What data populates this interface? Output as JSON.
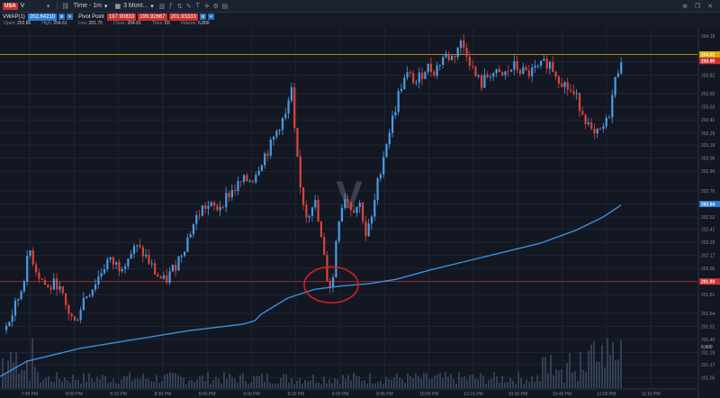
{
  "toolbar": {
    "symbol_badge": "USA",
    "symbol": "V",
    "interval_label": "Time - 1m",
    "range_label": "3 Mont..."
  },
  "studies": {
    "vwap_label": "VWAP(1)",
    "vwap_value": "202.64210",
    "pivot_label": "Pivot Point",
    "pivot_values": [
      "197.90833",
      "199.92667",
      "201.93333"
    ]
  },
  "ohlc": [
    {
      "label": "Open:",
      "value": "202.86"
    },
    {
      "label": "High:",
      "value": "204.61"
    },
    {
      "label": "Low:",
      "value": "201.75"
    },
    {
      "label": "Close:",
      "value": "204.61"
    },
    {
      "label": "Ticks:",
      "value": "65"
    },
    {
      "label": "Volume:",
      "value": "6,800"
    }
  ],
  "chart_data": {
    "type": "candlestick",
    "symbol": "V",
    "watermark": "V",
    "y_ticks": [
      "204.18",
      "204.01",
      "203.94",
      "203.82",
      "203.65",
      "203.53",
      "203.41",
      "203.29",
      "203.18",
      "203.06",
      "202.94",
      "202.76",
      "202.64",
      "202.52",
      "202.41",
      "202.29",
      "202.17",
      "202.05",
      "201.93",
      "201.81",
      "201.64",
      "201.52",
      "201.40",
      "201.28",
      "201.17",
      "201.05"
    ],
    "price_badges": [
      {
        "value": "204.01",
        "color": "#e0a800"
      },
      {
        "value": "203.95",
        "color": "#d03030"
      },
      {
        "value": "202.64",
        "color": "#2a7fd4"
      },
      {
        "value": "201.93",
        "color": "#d03030"
      }
    ],
    "x_ticks": [
      "7:45 PM",
      "8:00 PM",
      "8:15 PM",
      "8:30 PM",
      "8:45 PM",
      "9:00 PM",
      "9:15 PM",
      "9:30 PM",
      "9:45 PM",
      "10:00 PM",
      "10:15 PM",
      "10:30 PM",
      "10:45 PM",
      "11:00 PM",
      "11:15 PM"
    ],
    "volume_label": "6,800",
    "close_path": [
      [
        0,
        201.42
      ],
      [
        12,
        201.62
      ],
      [
        22,
        201.84
      ],
      [
        32,
        202.22
      ],
      [
        40,
        202.02
      ],
      [
        52,
        201.86
      ],
      [
        62,
        201.92
      ],
      [
        72,
        201.7
      ],
      [
        82,
        201.55
      ],
      [
        92,
        201.78
      ],
      [
        102,
        201.88
      ],
      [
        118,
        202.12
      ],
      [
        132,
        202.07
      ],
      [
        140,
        202.15
      ],
      [
        150,
        202.24
      ],
      [
        160,
        202.17
      ],
      [
        172,
        202.0
      ],
      [
        182,
        201.92
      ],
      [
        195,
        202.1
      ],
      [
        205,
        202.28
      ],
      [
        215,
        202.48
      ],
      [
        225,
        202.62
      ],
      [
        240,
        202.6
      ],
      [
        255,
        202.75
      ],
      [
        268,
        202.84
      ],
      [
        280,
        202.88
      ],
      [
        290,
        203.05
      ],
      [
        300,
        203.18
      ],
      [
        310,
        203.38
      ],
      [
        318,
        203.46
      ],
      [
        322,
        203.75
      ],
      [
        326,
        203.3
      ],
      [
        332,
        202.8
      ],
      [
        340,
        202.52
      ],
      [
        348,
        202.7
      ],
      [
        356,
        202.3
      ],
      [
        362,
        201.98
      ],
      [
        368,
        201.85
      ],
      [
        372,
        202.3
      ],
      [
        376,
        202.55
      ],
      [
        382,
        202.72
      ],
      [
        390,
        202.6
      ],
      [
        400,
        202.64
      ],
      [
        405,
        202.35
      ],
      [
        412,
        202.5
      ],
      [
        420,
        202.9
      ],
      [
        428,
        203.2
      ],
      [
        436,
        203.45
      ],
      [
        444,
        203.72
      ],
      [
        452,
        203.82
      ],
      [
        462,
        203.75
      ],
      [
        472,
        203.9
      ],
      [
        482,
        203.86
      ],
      [
        492,
        204.0
      ],
      [
        502,
        203.98
      ],
      [
        510,
        204.12
      ],
      [
        518,
        204.03
      ],
      [
        526,
        203.82
      ],
      [
        534,
        203.74
      ],
      [
        544,
        203.85
      ],
      [
        556,
        203.8
      ],
      [
        570,
        203.9
      ],
      [
        584,
        203.83
      ],
      [
        598,
        203.88
      ],
      [
        608,
        203.95
      ],
      [
        618,
        203.82
      ],
      [
        628,
        203.72
      ],
      [
        640,
        203.6
      ],
      [
        650,
        203.42
      ],
      [
        658,
        203.24
      ],
      [
        666,
        203.3
      ],
      [
        674,
        203.4
      ],
      [
        682,
        203.75
      ],
      [
        690,
        204.02
      ]
    ],
    "vwap_path": [
      [
        0,
        201.06
      ],
      [
        30,
        201.2
      ],
      [
        60,
        201.26
      ],
      [
        90,
        201.32
      ],
      [
        120,
        201.36
      ],
      [
        150,
        201.4
      ],
      [
        180,
        201.44
      ],
      [
        210,
        201.48
      ],
      [
        240,
        201.51
      ],
      [
        270,
        201.54
      ],
      [
        283,
        201.57
      ],
      [
        290,
        201.63
      ],
      [
        320,
        201.78
      ],
      [
        350,
        201.86
      ],
      [
        380,
        201.89
      ],
      [
        410,
        201.91
      ],
      [
        440,
        201.95
      ],
      [
        480,
        202.04
      ],
      [
        520,
        202.12
      ],
      [
        560,
        202.2
      ],
      [
        600,
        202.28
      ],
      [
        640,
        202.4
      ],
      [
        670,
        202.52
      ],
      [
        690,
        202.63
      ]
    ],
    "horizontal_lines": [
      {
        "value": 204.01,
        "color": "#e0a800"
      },
      {
        "value": 201.93,
        "color": "#a83030"
      }
    ],
    "annotation": {
      "type": "circle",
      "color": "#d02020",
      "x": 368,
      "y": 201.9
    }
  }
}
